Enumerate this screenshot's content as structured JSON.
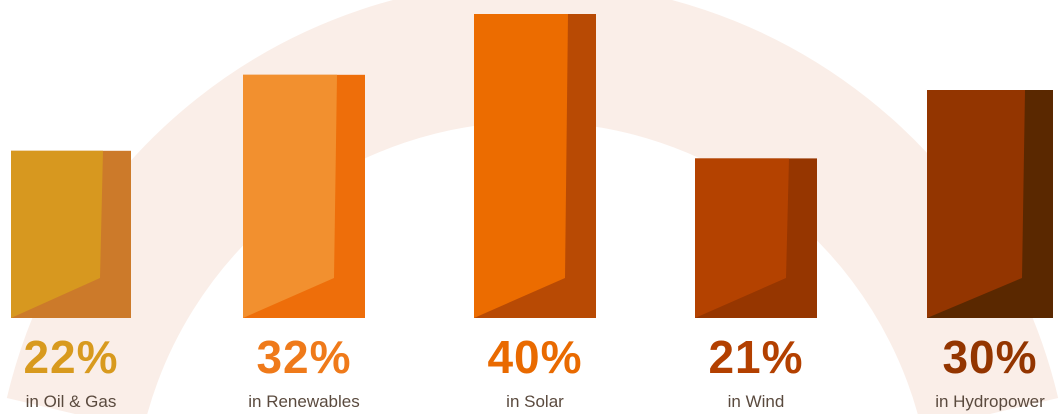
{
  "chart_data": {
    "type": "bar",
    "title": "",
    "xlabel": "",
    "ylabel": "",
    "categories": [
      "in Oil & Gas",
      "in Renewables",
      "in Solar",
      "in Wind",
      "in Hydropower"
    ],
    "values": [
      22,
      32,
      40,
      21,
      30
    ],
    "value_labels": [
      "22%",
      "32%",
      "40%",
      "21%",
      "30%"
    ],
    "value_label_colors": [
      "#d89a1e",
      "#ef7a1a",
      "#e96a00",
      "#b34000",
      "#933500"
    ],
    "bar_colors": [
      {
        "front": "#d7981f",
        "side": "#cc7a2a"
      },
      {
        "front": "#f2902f",
        "side": "#ee6e0a"
      },
      {
        "front": "#ec6c00",
        "side": "#b84a04"
      },
      {
        "front": "#b44200",
        "side": "#963600"
      },
      {
        "front": "#933500",
        "side": "#5a2800"
      }
    ],
    "ylim": [
      0,
      40
    ],
    "grid": false,
    "legend": "none"
  },
  "decoration": {
    "ring_color": "#faeee8"
  }
}
